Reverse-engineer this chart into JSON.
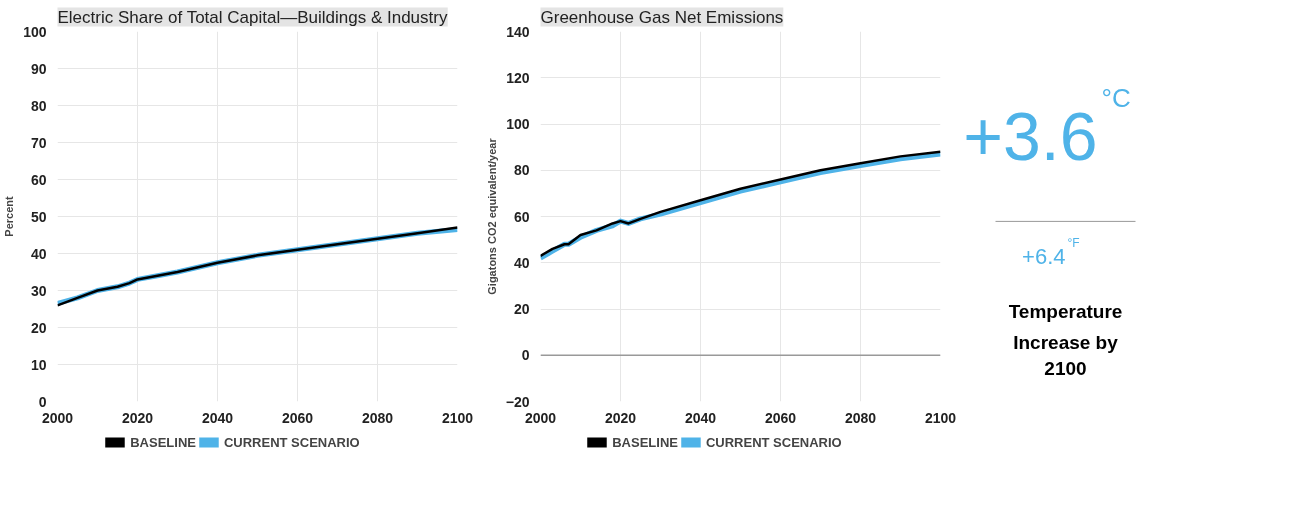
{
  "chart_data": [
    {
      "type": "line",
      "title": "Electric Share of Total Capital—Buildings & Industry",
      "ylabel": "Percent",
      "x": [
        2000,
        2005,
        2010,
        2015,
        2018,
        2020,
        2025,
        2030,
        2040,
        2050,
        2060,
        2070,
        2080,
        2090,
        2100
      ],
      "series": [
        {
          "name": "BASELINE",
          "color": "#000000",
          "values": [
            26,
            28,
            30,
            31,
            32,
            33,
            34,
            35,
            37.5,
            39.5,
            41,
            42.5,
            44,
            45.5,
            47
          ]
        },
        {
          "name": "CURRENT SCENARIO",
          "color": "#4fb3e8",
          "values": [
            26.5,
            28,
            30,
            31,
            32,
            33,
            34,
            35,
            37.5,
            39.5,
            41,
            42.5,
            44,
            45.5,
            46.5
          ]
        }
      ],
      "xlim": [
        2000,
        2100
      ],
      "xticks": [
        2000,
        2020,
        2040,
        2060,
        2080,
        2100
      ],
      "ylim": [
        0,
        100
      ],
      "yticks": [
        0,
        10,
        20,
        30,
        40,
        50,
        60,
        70,
        80,
        90,
        100
      ],
      "grid": true,
      "legend": "bottom",
      "line_style": "solid"
    },
    {
      "type": "line",
      "title": "Greenhouse Gas Net Emissions",
      "ylabel": "Gigatons CO2 equivalent/year",
      "x": [
        2000,
        2003,
        2006,
        2007,
        2010,
        2014,
        2018,
        2020,
        2022,
        2025,
        2030,
        2040,
        2050,
        2060,
        2070,
        2080,
        2090,
        2100
      ],
      "series": [
        {
          "name": "BASELINE",
          "color": "#000000",
          "values": [
            43,
            46,
            48,
            48,
            52,
            54,
            57,
            58,
            57,
            59,
            62,
            67,
            72,
            76,
            80,
            83,
            86,
            88
          ]
        },
        {
          "name": "CURRENT SCENARIO",
          "color": "#4fb3e8",
          "values": [
            42,
            45,
            48,
            48,
            51,
            54,
            56,
            58,
            57,
            59,
            61,
            66,
            71,
            75,
            79,
            82,
            85,
            87
          ]
        }
      ],
      "xlim": [
        2000,
        2100
      ],
      "xticks": [
        2000,
        2020,
        2040,
        2060,
        2080,
        2100
      ],
      "ylim": [
        -20,
        140
      ],
      "yticks": [
        -20,
        0,
        20,
        40,
        60,
        80,
        100,
        120,
        140
      ],
      "grid": true,
      "legend": "bottom",
      "line_style": "solid",
      "ref_lines": [
        {
          "axis": "y",
          "value": 0,
          "color": "#999999"
        }
      ]
    },
    {
      "type": "other",
      "annotations": [
        "+3.6",
        "°C",
        "+6.4",
        "°F",
        "Temperature Increase by 2100"
      ]
    }
  ]
}
